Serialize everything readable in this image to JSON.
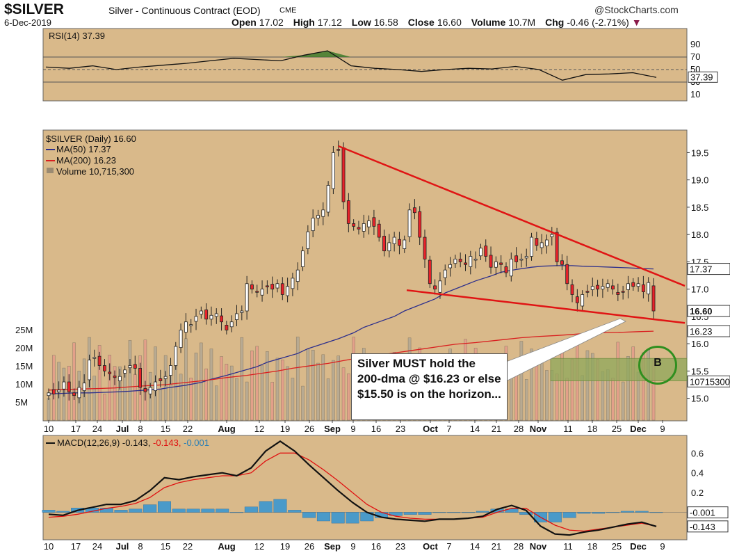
{
  "header": {
    "ticker": "$SILVER",
    "description": "Silver - Continuous Contract (EOD)",
    "exchange": "CME",
    "site": "@StockCharts.com",
    "date": "6-Dec-2019",
    "open_label": "Open",
    "open": "17.02",
    "high_label": "High",
    "high": "17.12",
    "low_label": "Low",
    "low": "16.58",
    "close_label": "Close",
    "close": "16.60",
    "volume_label": "Volume",
    "volume": "10.7M",
    "chg_label": "Chg",
    "chg": "-0.46 (-2.71%)"
  },
  "callout": {
    "text": "Silver MUST hold the 200-dma @ $16.23 or else $15.50 is on the horizon..."
  },
  "badge": {
    "label": "B"
  },
  "colors": {
    "panel_bg": "#d9b98a",
    "up_candle": "#ffffff",
    "down_candle": "#e8222a",
    "ma50": "#2d2f8c",
    "ma200": "#d92020",
    "trendline": "#e01414",
    "rsi_fill": "#3d7a2a",
    "macd": "#111111",
    "macd_signal": "#e01010",
    "histogram": "#4a9ac9",
    "zone": "#8fa85a"
  },
  "chart_data": [
    {
      "type": "line",
      "name": "rsi",
      "legend": "RSI(14) 37.39",
      "ylim": [
        0,
        100
      ],
      "yticks": [
        "90",
        "70",
        "50",
        "30",
        "10"
      ],
      "last_value_label": "37.39",
      "x": [
        "Jun 10",
        "Jun 17",
        "Jun 24",
        "Jul 1",
        "Jul 8",
        "Jul 15",
        "Jul 22",
        "Jul 29",
        "Aug 5",
        "Aug 12",
        "Aug 19",
        "Aug 26",
        "Sep 2",
        "Sep 9",
        "Sep 16",
        "Sep 23",
        "Sep 30",
        "Oct 7",
        "Oct 14",
        "Oct 21",
        "Oct 28",
        "Nov 4",
        "Nov 11",
        "Nov 18",
        "Nov 25",
        "Dec 2",
        "Dec 6"
      ],
      "values": [
        54,
        52,
        56,
        50,
        54,
        57,
        60,
        64,
        68,
        66,
        64,
        73,
        80,
        56,
        52,
        50,
        47,
        50,
        52,
        51,
        55,
        50,
        33,
        42,
        43,
        45,
        37.39
      ]
    },
    {
      "type": "line",
      "name": "price",
      "legend_title": "$SILVER (Daily) 16.60",
      "legend_ma50": "MA(50) 17.37",
      "legend_ma200": "MA(200) 16.23",
      "legend_volume": "Volume 10,715,300",
      "ylim": [
        14.6,
        19.9
      ],
      "yticks": [
        "19.5",
        "19.0",
        "18.5",
        "18.0",
        "17.5",
        "17.0",
        "16.5",
        "16.0",
        "15.5",
        "15.0"
      ],
      "xticks": [
        "10",
        "17",
        "24",
        "Jul",
        "8",
        "15",
        "22",
        "Aug",
        "12",
        "19",
        "26",
        "Sep",
        "9",
        "16",
        "23",
        "Oct",
        "7",
        "14",
        "21",
        "28",
        "Nov",
        "11",
        "18",
        "25",
        "Dec",
        "9"
      ],
      "price_labels": {
        "ma50": "17.37",
        "close": "16.60",
        "ma200": "16.23",
        "volume": "10715300"
      },
      "volume_axis": [
        "25M",
        "20M",
        "15M",
        "10M",
        "5M"
      ],
      "closes": [
        15.1,
        15.08,
        15.15,
        15.3,
        15.12,
        15.05,
        15.2,
        15.28,
        15.7,
        15.75,
        15.6,
        15.5,
        15.45,
        15.38,
        15.4,
        15.52,
        15.6,
        15.55,
        15.2,
        15.12,
        15.2,
        15.3,
        15.32,
        15.4,
        15.6,
        15.95,
        16.25,
        16.4,
        16.35,
        16.5,
        16.6,
        16.45,
        16.52,
        16.55,
        16.4,
        16.25,
        16.4,
        16.55,
        16.6,
        17.1,
        17.0,
        16.95,
        17.0,
        17.05,
        17.0,
        17.1,
        16.9,
        17.05,
        17.2,
        17.35,
        17.7,
        18.05,
        18.3,
        18.35,
        18.45,
        18.9,
        19.5,
        19.55,
        18.6,
        18.2,
        18.15,
        18.1,
        18.2,
        18.25,
        18.15,
        17.95,
        17.7,
        17.85,
        17.95,
        17.8,
        17.9,
        18.45,
        18.4,
        17.95,
        17.55,
        17.1,
        17.0,
        17.15,
        17.35,
        17.45,
        17.55,
        17.5,
        17.45,
        17.6,
        17.55,
        17.75,
        17.6,
        17.4,
        17.5,
        17.45,
        17.3,
        17.55,
        17.5,
        17.55,
        17.6,
        17.95,
        17.8,
        17.85,
        17.9,
        18.0,
        17.5,
        17.45,
        17.1,
        16.9,
        16.75,
        16.9,
        16.95,
        17.05,
        17.0,
        17.05,
        17.1,
        17.0,
        16.9,
        16.95,
        17.1,
        17.05,
        17.1,
        16.95,
        17.12,
        16.6
      ],
      "ma50": [
        15.08,
        15.09,
        15.1,
        15.1,
        15.11,
        15.12,
        15.13,
        15.15,
        15.17,
        15.2,
        15.24,
        15.29,
        15.35,
        15.42,
        15.5,
        15.58,
        15.66,
        15.74,
        15.82,
        15.91,
        16.0,
        16.09,
        16.2,
        16.3,
        16.4,
        16.5,
        16.6,
        16.71,
        16.82,
        16.93,
        17.04,
        17.15,
        17.24,
        17.31,
        17.36,
        17.4,
        17.42,
        17.43,
        17.43,
        17.42,
        17.41,
        17.4,
        17.39,
        17.38,
        17.37
      ],
      "ma200": [
        15.15,
        15.16,
        15.17,
        15.18,
        15.19,
        15.21,
        15.23,
        15.25,
        15.28,
        15.31,
        15.34,
        15.38,
        15.42,
        15.46,
        15.5,
        15.55,
        15.59,
        15.64,
        15.69,
        15.74,
        15.78,
        15.83,
        15.87,
        15.91,
        15.95,
        15.99,
        16.02,
        16.05,
        16.08,
        16.11,
        16.13,
        16.15,
        16.17,
        16.19,
        16.2,
        16.21,
        16.22,
        16.23
      ]
    },
    {
      "type": "line",
      "name": "macd",
      "legend_label": "MACD(12,26,9)",
      "legend_macd": "-0.143",
      "legend_signal": "-0.143",
      "legend_hist": "-0.001",
      "ylim": [
        -0.25,
        0.75
      ],
      "yticks": [
        "0.6",
        "0.4",
        "0.2"
      ],
      "last_labels": {
        "hist": "-0.001",
        "macd": "-0.143"
      },
      "xticks": [
        "10",
        "17",
        "24",
        "Jul",
        "8",
        "15",
        "22",
        "Aug",
        "12",
        "19",
        "26",
        "Sep",
        "9",
        "16",
        "23",
        "Oct",
        "7",
        "14",
        "21",
        "28",
        "Nov",
        "11",
        "18",
        "25",
        "Dec",
        "9"
      ],
      "macd": [
        -0.02,
        -0.03,
        0.02,
        0.05,
        0.08,
        0.08,
        0.12,
        0.22,
        0.35,
        0.33,
        0.36,
        0.38,
        0.4,
        0.37,
        0.45,
        0.62,
        0.72,
        0.62,
        0.48,
        0.35,
        0.22,
        0.1,
        0.0,
        -0.05,
        -0.07,
        -0.08,
        -0.09,
        -0.07,
        -0.07,
        -0.06,
        -0.04,
        0.03,
        0.07,
        0.02,
        -0.14,
        -0.22,
        -0.23,
        -0.2,
        -0.18,
        -0.15,
        -0.12,
        -0.1,
        -0.143
      ],
      "signal": [
        -0.05,
        -0.04,
        -0.02,
        0.01,
        0.04,
        0.06,
        0.09,
        0.15,
        0.25,
        0.3,
        0.33,
        0.35,
        0.37,
        0.37,
        0.4,
        0.52,
        0.6,
        0.6,
        0.53,
        0.43,
        0.32,
        0.2,
        0.08,
        0.0,
        -0.04,
        -0.06,
        -0.07,
        -0.07,
        -0.07,
        -0.06,
        -0.05,
        0.0,
        0.04,
        0.04,
        -0.05,
        -0.13,
        -0.18,
        -0.19,
        -0.17,
        -0.15,
        -0.13,
        -0.11,
        -0.143
      ],
      "histogram": [
        0.02,
        0.01,
        0.04,
        0.04,
        0.04,
        0.02,
        0.03,
        0.07,
        0.1,
        0.03,
        0.03,
        0.03,
        0.03,
        0.0,
        0.05,
        0.1,
        0.12,
        0.02,
        -0.05,
        -0.08,
        -0.1,
        -0.1,
        -0.08,
        -0.05,
        -0.03,
        -0.02,
        -0.02,
        0.0,
        0.0,
        0.0,
        0.01,
        0.03,
        0.03,
        -0.02,
        -0.09,
        -0.09,
        -0.05,
        -0.01,
        -0.01,
        0.0,
        0.01,
        0.01,
        -0.001
      ]
    }
  ]
}
